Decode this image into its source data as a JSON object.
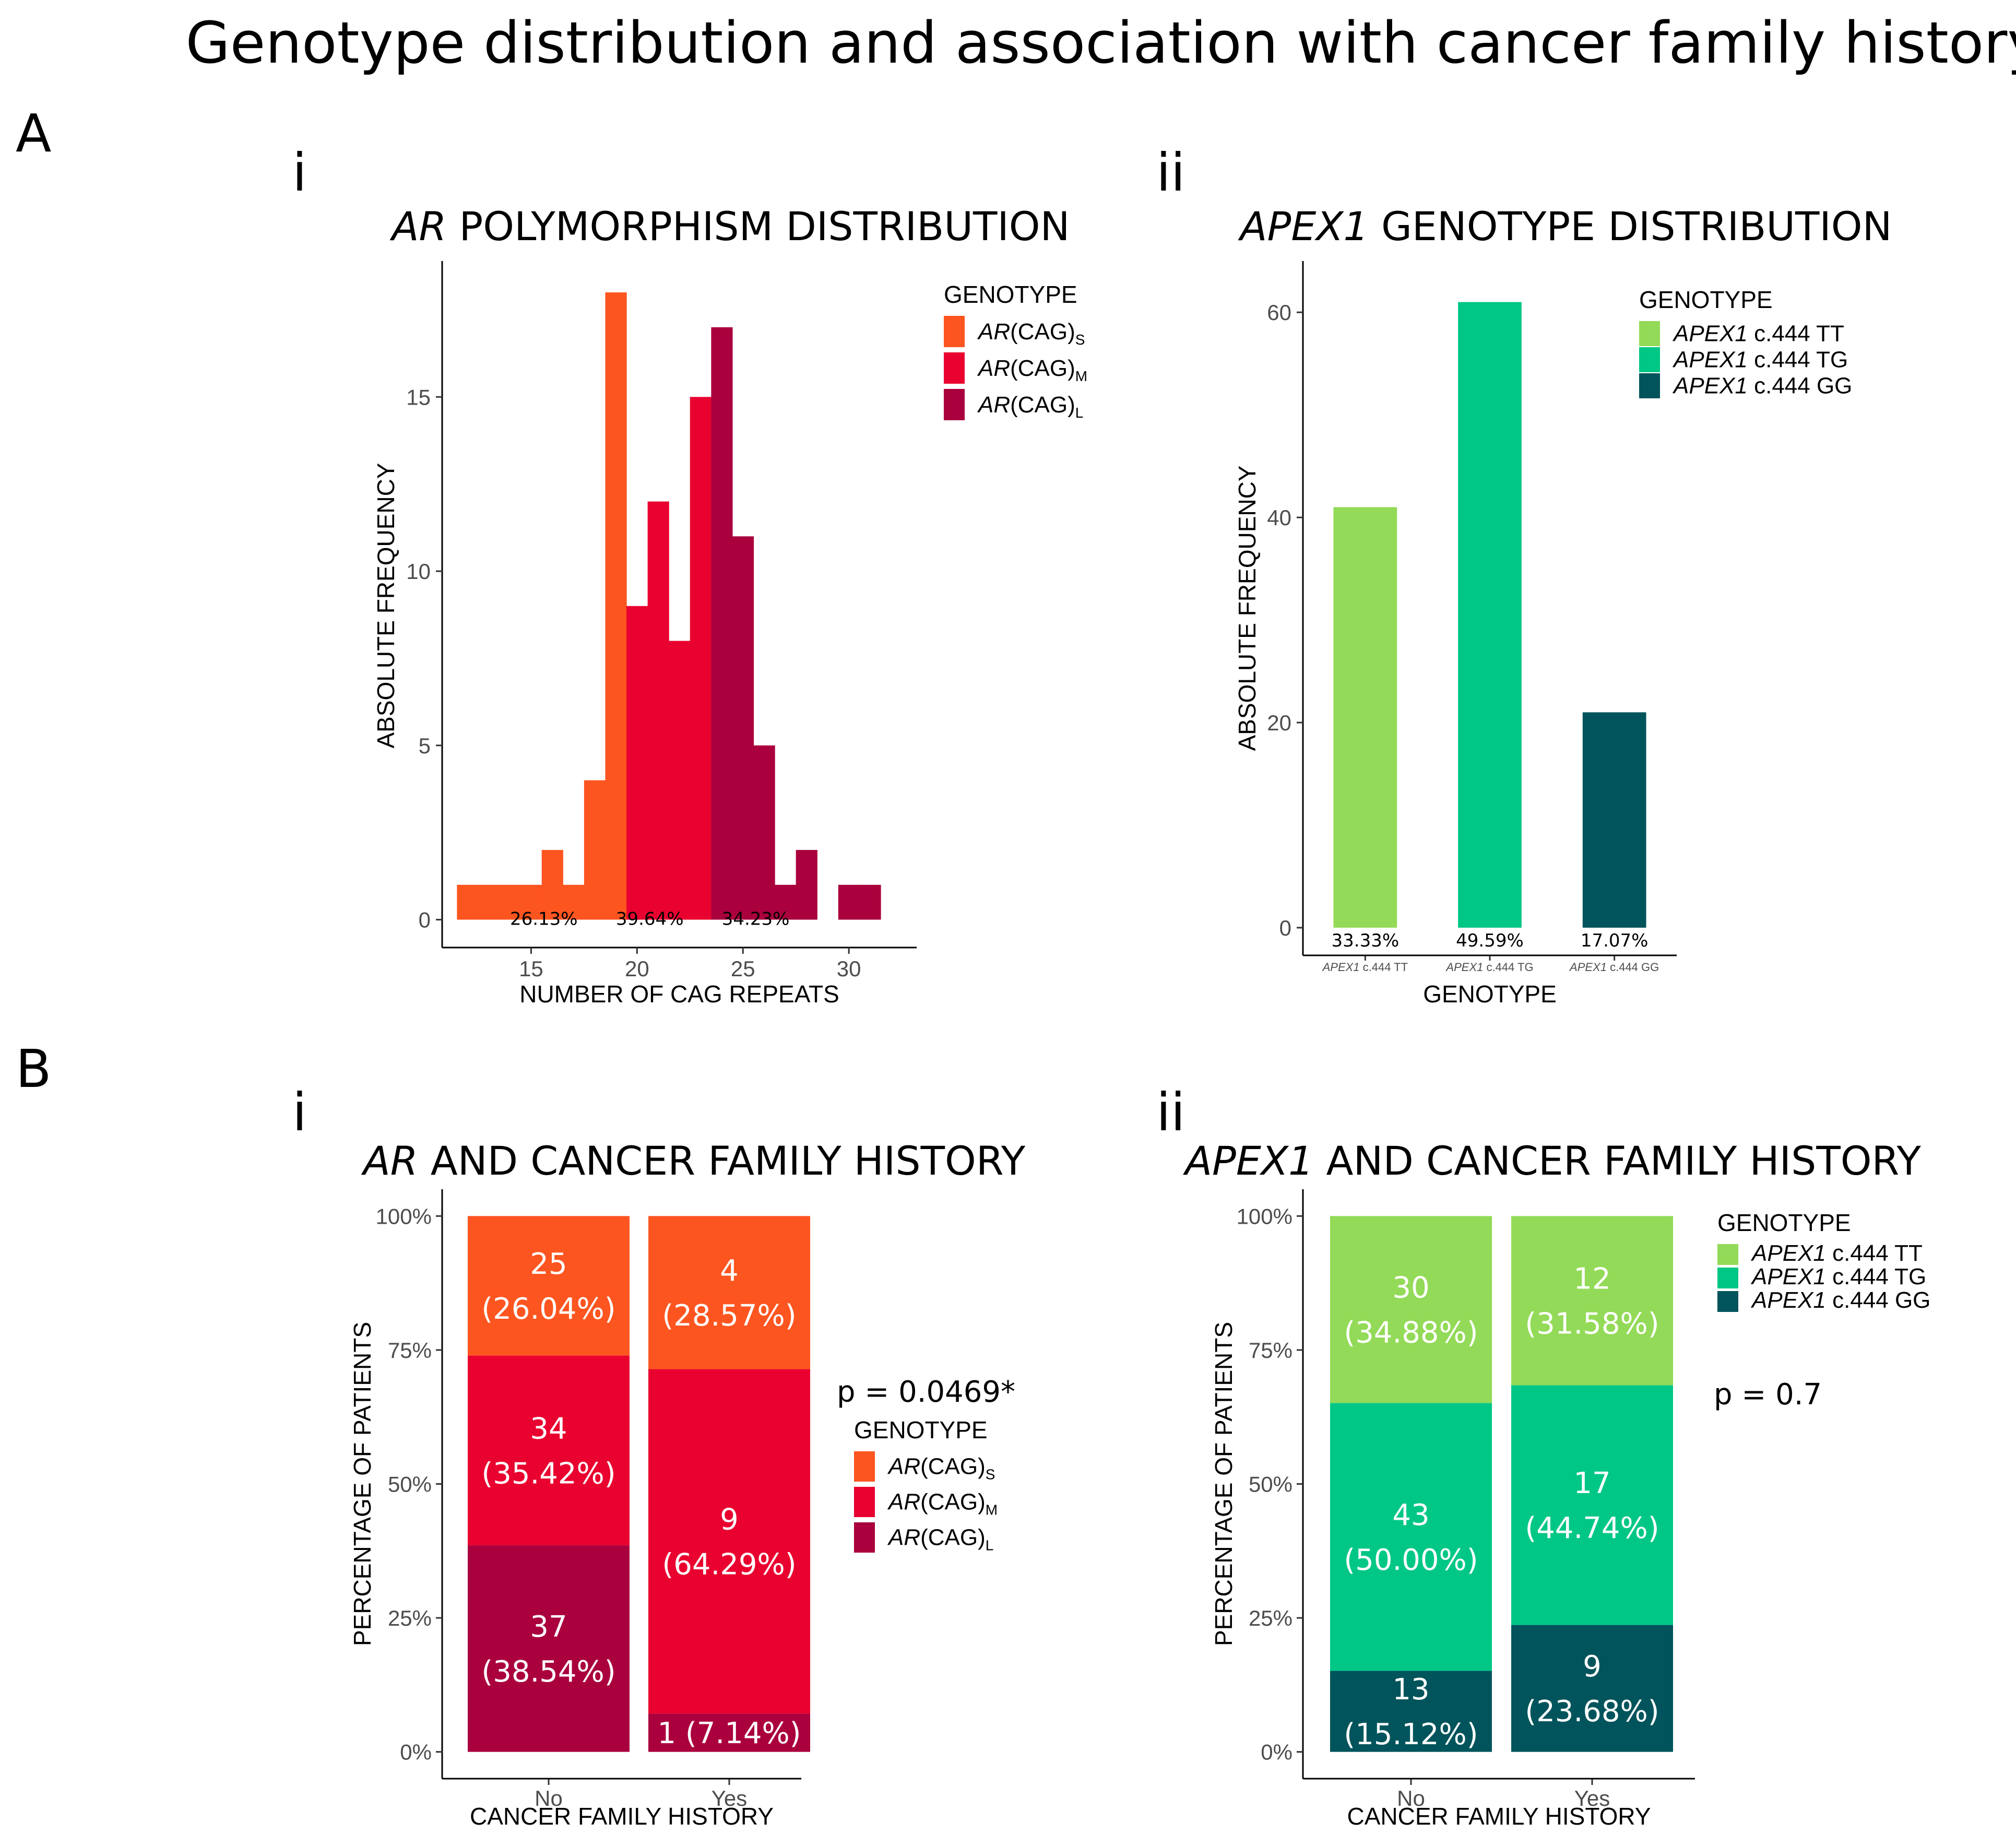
{
  "figure": {
    "title": "Genotype distribution and association with cancer family history",
    "panel_A": "A",
    "panel_B": "B",
    "sub_i": "i",
    "sub_ii": "ii"
  },
  "chart_data": [
    {
      "id": "ar_hist",
      "type": "bar",
      "title_italic": "AR",
      "title_rest": " POLYMORPHISM DISTRIBUTION",
      "xlabel": "NUMBER OF CAG REPEATS",
      "ylabel": "ABSOLUTE FREQUENCY",
      "xlim": [
        10.8,
        33.2
      ],
      "ylim": [
        -0.8,
        18.9
      ],
      "xticks": [
        15,
        20,
        25,
        30
      ],
      "yticks": [
        0,
        5,
        10,
        15
      ],
      "bin_width": 1,
      "bins": [
        {
          "x": 12,
          "count": 1,
          "group": "S"
        },
        {
          "x": 13,
          "count": 1,
          "group": "S"
        },
        {
          "x": 14,
          "count": 1,
          "group": "S"
        },
        {
          "x": 15,
          "count": 1,
          "group": "S"
        },
        {
          "x": 16,
          "count": 2,
          "group": "S"
        },
        {
          "x": 17,
          "count": 1,
          "group": "S"
        },
        {
          "x": 18,
          "count": 4,
          "group": "S"
        },
        {
          "x": 19,
          "count": 18,
          "group": "S"
        },
        {
          "x": 20,
          "count": 9,
          "group": "M"
        },
        {
          "x": 21,
          "count": 12,
          "group": "M"
        },
        {
          "x": 22,
          "count": 8,
          "group": "M"
        },
        {
          "x": 23,
          "count": 15,
          "group": "M"
        },
        {
          "x": 24,
          "count": 17,
          "group": "L"
        },
        {
          "x": 25,
          "count": 11,
          "group": "L"
        },
        {
          "x": 26,
          "count": 5,
          "group": "L"
        },
        {
          "x": 27,
          "count": 1,
          "group": "L"
        },
        {
          "x": 28,
          "count": 2,
          "group": "L"
        },
        {
          "x": 29,
          "count": 0,
          "group": "L"
        },
        {
          "x": 30,
          "count": 1,
          "group": "L"
        },
        {
          "x": 31,
          "count": 1,
          "group": "L"
        }
      ],
      "pct_labels": [
        {
          "x": 15.6,
          "text": "26.13%"
        },
        {
          "x": 20.6,
          "text": "39.64%"
        },
        {
          "x": 25.6,
          "text": "34.23%"
        }
      ],
      "legend": {
        "title": "GENOTYPE",
        "entries": [
          {
            "key": "S",
            "italic": "AR",
            "text": "(CAG)",
            "sub": "S",
            "color": "#fd5520"
          },
          {
            "key": "M",
            "italic": "AR",
            "text": "(CAG)",
            "sub": "M",
            "color": "#e9022f"
          },
          {
            "key": "L",
            "italic": "AR",
            "text": "(CAG)",
            "sub": "L",
            "color": "#aa003d"
          }
        ]
      }
    },
    {
      "id": "apex_bar",
      "type": "bar",
      "title_italic": "APEX1",
      "title_rest": " GENOTYPE DISTRIBUTION",
      "xlabel": "GENOTYPE",
      "ylabel": "ABSOLUTE FREQUENCY",
      "ylim": [
        -2.7,
        65
      ],
      "yticks": [
        0,
        20,
        40,
        60
      ],
      "categories": [
        {
          "italic": "APEX1",
          "rest": " c.444 TT"
        },
        {
          "italic": "APEX1",
          "rest": " c.444 TG"
        },
        {
          "italic": "APEX1",
          "rest": " c.444 GG"
        }
      ],
      "values": [
        41,
        61,
        21
      ],
      "colors": [
        "#93da58",
        "#00c786",
        "#01545b"
      ],
      "pct_labels": [
        "33.33%",
        "49.59%",
        "17.07%"
      ],
      "legend": {
        "title": "GENOTYPE",
        "entries": [
          {
            "italic": "APEX1",
            "rest": " c.444 TT",
            "color": "#93da58"
          },
          {
            "italic": "APEX1",
            "rest": " c.444 TG",
            "color": "#00c786"
          },
          {
            "italic": "APEX1",
            "rest": " c.444 GG",
            "color": "#01545b"
          }
        ]
      }
    },
    {
      "id": "ar_stack",
      "type": "bar",
      "stacked": true,
      "title_italic": "AR",
      "title_rest": " AND CANCER FAMILY HISTORY",
      "xlabel": "CANCER FAMILY HISTORY",
      "ylabel": "PERCENTAGE OF PATIENTS",
      "ylim": [
        -0.05,
        1.05
      ],
      "yticks": [
        "0%",
        "25%",
        "50%",
        "75%",
        "100%"
      ],
      "categories": [
        "No",
        "Yes"
      ],
      "series": [
        {
          "key": "L",
          "values": [
            37,
            1
          ],
          "pcts": [
            38.54,
            7.14
          ],
          "labels": [
            [
              "37",
              "(38.54%)"
            ],
            [
              "1 (7.14%)"
            ]
          ],
          "color": "#aa003d"
        },
        {
          "key": "M",
          "values": [
            34,
            9
          ],
          "pcts": [
            35.42,
            64.29
          ],
          "labels": [
            [
              "34",
              "(35.42%)"
            ],
            [
              "9",
              "(64.29%)"
            ]
          ],
          "color": "#e9022f"
        },
        {
          "key": "S",
          "values": [
            25,
            4
          ],
          "pcts": [
            26.04,
            28.57
          ],
          "labels": [
            [
              "25",
              "(26.04%)"
            ],
            [
              "4",
              "(28.57%)"
            ]
          ],
          "color": "#fd5520"
        }
      ],
      "p_value": "p = 0.0469*",
      "legend": {
        "title": "GENOTYPE",
        "entries": [
          {
            "italic": "AR",
            "text": "(CAG)",
            "sub": "S",
            "color": "#fd5520"
          },
          {
            "italic": "AR",
            "text": "(CAG)",
            "sub": "M",
            "color": "#e9022f"
          },
          {
            "italic": "AR",
            "text": "(CAG)",
            "sub": "L",
            "color": "#aa003d"
          }
        ]
      }
    },
    {
      "id": "apex_stack",
      "type": "bar",
      "stacked": true,
      "title_italic": "APEX1",
      "title_rest": " AND CANCER FAMILY HISTORY",
      "xlabel": "CANCER FAMILY HISTORY",
      "ylabel": "PERCENTAGE OF PATIENTS",
      "ylim": [
        -0.05,
        1.05
      ],
      "yticks": [
        "0%",
        "25%",
        "50%",
        "75%",
        "100%"
      ],
      "categories": [
        "No",
        "Yes"
      ],
      "series": [
        {
          "key": "GG",
          "values": [
            13,
            9
          ],
          "pcts": [
            15.12,
            23.68
          ],
          "labels": [
            [
              "13",
              "(15.12%)"
            ],
            [
              "9",
              "(23.68%)"
            ]
          ],
          "color": "#01545b"
        },
        {
          "key": "TG",
          "values": [
            43,
            17
          ],
          "pcts": [
            50.0,
            44.74
          ],
          "labels": [
            [
              "43",
              "(50.00%)"
            ],
            [
              "17",
              "(44.74%)"
            ]
          ],
          "color": "#00c786"
        },
        {
          "key": "TT",
          "values": [
            30,
            12
          ],
          "pcts": [
            34.88,
            31.58
          ],
          "labels": [
            [
              "30",
              "(34.88%)"
            ],
            [
              "12",
              "(31.58%)"
            ]
          ],
          "color": "#93da58"
        }
      ],
      "p_value": "p = 0.7",
      "legend": {
        "title": "GENOTYPE",
        "entries": [
          {
            "italic": "APEX1",
            "rest": " c.444 TT",
            "color": "#93da58"
          },
          {
            "italic": "APEX1",
            "rest": " c.444 TG",
            "color": "#00c786"
          },
          {
            "italic": "APEX1",
            "rest": " c.444 GG",
            "color": "#01545b"
          }
        ]
      }
    }
  ]
}
